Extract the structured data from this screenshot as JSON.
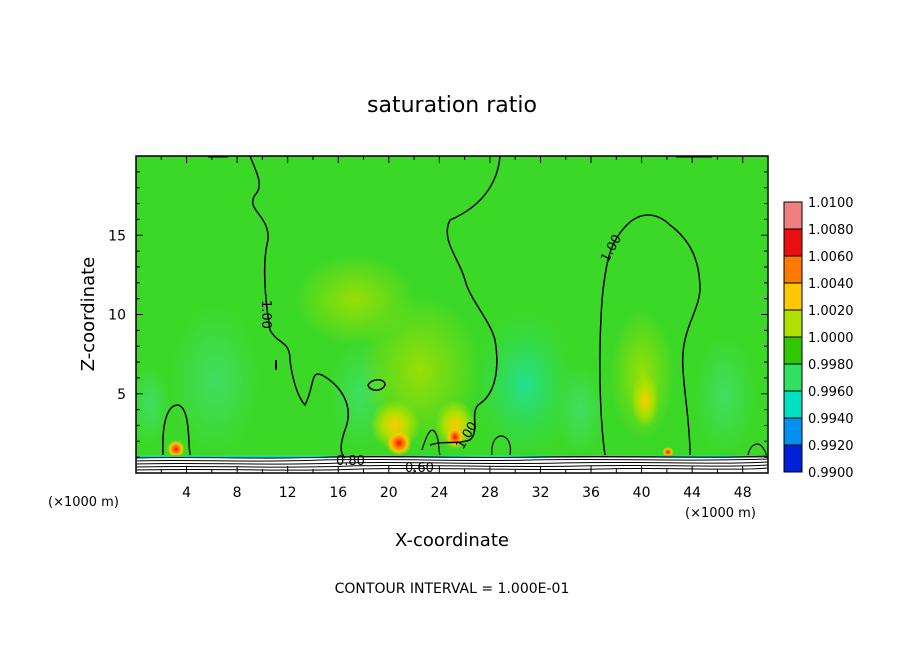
{
  "chart_data": {
    "type": "heatmap",
    "title": "saturation ratio",
    "xlabel": "X-coordinate",
    "ylabel": "Z-coordinate",
    "x_unit": "(×1000 m)",
    "y_unit": "(×1000 m)",
    "xlim": [
      0,
      50
    ],
    "ylim": [
      0,
      20
    ],
    "x_ticks": [
      "4",
      "8",
      "12",
      "16",
      "20",
      "24",
      "28",
      "32",
      "36",
      "40",
      "44",
      "48"
    ],
    "x_tick_values": [
      4,
      8,
      12,
      16,
      20,
      24,
      28,
      32,
      36,
      40,
      44,
      48
    ],
    "y_ticks": [
      "5",
      "10",
      "15"
    ],
    "y_tick_values": [
      5,
      10,
      15
    ],
    "colorbar": {
      "labels": [
        "1.0100",
        "1.0080",
        "1.0060",
        "1.0040",
        "1.0020",
        "1.0000",
        "0.9980",
        "0.9960",
        "0.9940",
        "0.9920",
        "0.9900"
      ],
      "values": [
        1.01,
        1.008,
        1.006,
        1.004,
        1.002,
        1.0,
        0.998,
        0.996,
        0.994,
        0.992,
        0.99
      ],
      "colors": [
        "#f08080",
        "#e81010",
        "#ff7800",
        "#ffc800",
        "#b0e000",
        "#30c800",
        "#30e060",
        "#00e0c0",
        "#0090f0",
        "#0020d8",
        "#6000a0"
      ]
    },
    "background_color": "#3cd828",
    "contour_labels": [
      "1.00",
      "1.00",
      "1.00",
      "0.80",
      "0.60"
    ],
    "footer": "CONTOUR INTERVAL =  1.000E-01"
  }
}
